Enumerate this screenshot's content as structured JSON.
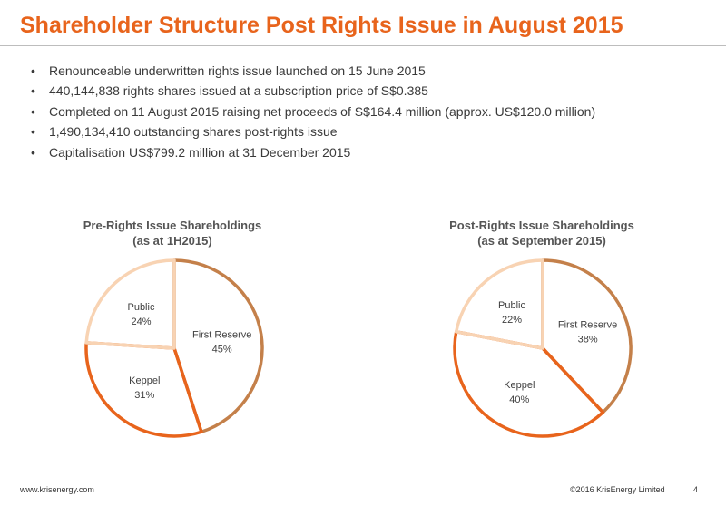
{
  "title": "Shareholder Structure Post Rights Issue in August 2015",
  "bullets": [
    "Renounceable underwritten rights issue launched on 15 June 2015",
    "440,144,838 rights shares issued at a subscription price of S$0.385",
    "Completed on 11 August 2015 raising net proceeds of S$164.4 million (approx. US$120.0 million)",
    "1,490,134,410 outstanding shares post-rights issue",
    "Capitalisation US$799.2 million at 31 December 2015"
  ],
  "colors": {
    "accent": "#E8641C",
    "first_reserve": "#C4804A",
    "keppel": "#E8641C",
    "public": "#F8D3B3"
  },
  "chart_data": [
    {
      "type": "pie",
      "title": "Pre-Rights Issue Shareholdings",
      "subtitle": "(as at 1H2015)",
      "slices": [
        {
          "name": "First Reserve",
          "value": 45,
          "label": "45%"
        },
        {
          "name": "Keppel",
          "value": 31,
          "label": "31%"
        },
        {
          "name": "Public",
          "value": 24,
          "label": "24%"
        }
      ]
    },
    {
      "type": "pie",
      "title": "Post-Rights Issue Shareholdings",
      "subtitle": "(as at September 2015)",
      "slices": [
        {
          "name": "First Reserve",
          "value": 38,
          "label": "38%"
        },
        {
          "name": "Keppel",
          "value": 40,
          "label": "40%"
        },
        {
          "name": "Public",
          "value": 22,
          "label": "22%"
        }
      ]
    }
  ],
  "footer": {
    "website": "www.krisenergy.com",
    "copyright": "©2016 KrisEnergy Limited",
    "page_number": "4"
  }
}
